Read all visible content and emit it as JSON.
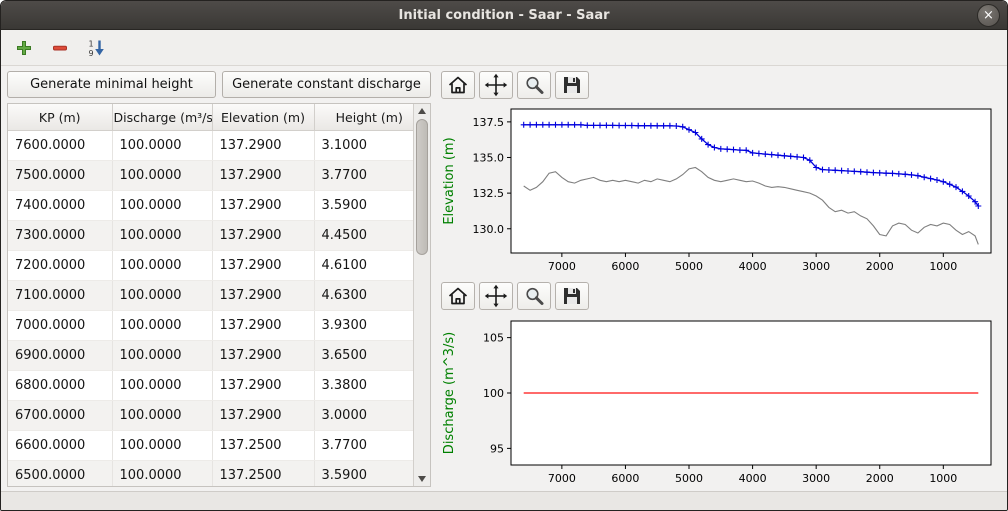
{
  "window": {
    "title": "Initial condition - Saar - Saar",
    "close_glyph": "×"
  },
  "toolbar": {
    "icons": [
      "add",
      "remove",
      "sort-1-9"
    ]
  },
  "actions": {
    "generate_minimal_height": "Generate minimal height",
    "generate_constant_discharge": "Generate constant discharge"
  },
  "table": {
    "columns": [
      "KP (m)",
      "Discharge (m³/s)",
      "Elevation (m)",
      "Height (m)"
    ],
    "rows": [
      [
        "7600.0000",
        "100.0000",
        "137.2900",
        "3.1000"
      ],
      [
        "7500.0000",
        "100.0000",
        "137.2900",
        "3.7700"
      ],
      [
        "7400.0000",
        "100.0000",
        "137.2900",
        "3.5900"
      ],
      [
        "7300.0000",
        "100.0000",
        "137.2900",
        "4.4500"
      ],
      [
        "7200.0000",
        "100.0000",
        "137.2900",
        "4.6100"
      ],
      [
        "7100.0000",
        "100.0000",
        "137.2900",
        "4.6300"
      ],
      [
        "7000.0000",
        "100.0000",
        "137.2900",
        "3.9300"
      ],
      [
        "6900.0000",
        "100.0000",
        "137.2900",
        "3.6500"
      ],
      [
        "6800.0000",
        "100.0000",
        "137.2900",
        "3.3800"
      ],
      [
        "6700.0000",
        "100.0000",
        "137.2900",
        "3.0000"
      ],
      [
        "6600.0000",
        "100.0000",
        "137.2500",
        "3.7700"
      ],
      [
        "6500.0000",
        "100.0000",
        "137.2500",
        "3.5900"
      ]
    ]
  },
  "plot_toolbar": {
    "buttons": [
      "home",
      "pan",
      "zoom",
      "save"
    ]
  },
  "colors": {
    "series_blue": "#0000dd",
    "series_gray": "#7f7f7f",
    "series_red": "#ff1111",
    "axis_label_green": "#008000"
  },
  "chart_data": [
    {
      "type": "line",
      "ylabel": "Elevation (m)",
      "ylabel_color": "#008000",
      "xlim": [
        7800,
        250
      ],
      "ylim": [
        128.3,
        138.4
      ],
      "x_axis_inverted": true,
      "grid": false,
      "xticks": [
        7000,
        6000,
        5000,
        4000,
        3000,
        2000,
        1000
      ],
      "yticks": [
        130.0,
        132.5,
        135.0,
        137.5
      ],
      "ytick_labels": [
        "130.0",
        "132.5",
        "135.0",
        "137.5"
      ],
      "series": [
        {
          "color": "#7f7f7f",
          "width": 1.1,
          "marker": null,
          "data": [
            [
              7600,
              133.0
            ],
            [
              7500,
              132.7
            ],
            [
              7400,
              132.9
            ],
            [
              7300,
              133.3
            ],
            [
              7200,
              133.9
            ],
            [
              7100,
              134.0
            ],
            [
              7000,
              133.6
            ],
            [
              6900,
              133.3
            ],
            [
              6800,
              133.2
            ],
            [
              6700,
              133.4
            ],
            [
              6600,
              133.5
            ],
            [
              6500,
              133.6
            ],
            [
              6400,
              133.4
            ],
            [
              6300,
              133.3
            ],
            [
              6200,
              133.4
            ],
            [
              6100,
              133.3
            ],
            [
              6000,
              133.4
            ],
            [
              5900,
              133.3
            ],
            [
              5800,
              133.2
            ],
            [
              5700,
              133.4
            ],
            [
              5600,
              133.3
            ],
            [
              5500,
              133.5
            ],
            [
              5400,
              133.4
            ],
            [
              5300,
              133.3
            ],
            [
              5200,
              133.5
            ],
            [
              5100,
              133.8
            ],
            [
              5000,
              134.2
            ],
            [
              4900,
              134.3
            ],
            [
              4800,
              134.0
            ],
            [
              4700,
              133.6
            ],
            [
              4600,
              133.4
            ],
            [
              4500,
              133.3
            ],
            [
              4400,
              133.4
            ],
            [
              4300,
              133.5
            ],
            [
              4200,
              133.4
            ],
            [
              4100,
              133.3
            ],
            [
              4000,
              133.35
            ],
            [
              3900,
              133.2
            ],
            [
              3800,
              133.0
            ],
            [
              3700,
              132.9
            ],
            [
              3600,
              132.95
            ],
            [
              3500,
              132.9
            ],
            [
              3400,
              132.8
            ],
            [
              3300,
              132.7
            ],
            [
              3200,
              132.6
            ],
            [
              3100,
              132.5
            ],
            [
              3000,
              132.3
            ],
            [
              2900,
              132.0
            ],
            [
              2800,
              131.5
            ],
            [
              2700,
              131.2
            ],
            [
              2600,
              131.3
            ],
            [
              2500,
              131.1
            ],
            [
              2400,
              131.2
            ],
            [
              2300,
              130.9
            ],
            [
              2200,
              130.7
            ],
            [
              2100,
              130.2
            ],
            [
              2000,
              129.6
            ],
            [
              1900,
              129.5
            ],
            [
              1800,
              130.2
            ],
            [
              1700,
              130.4
            ],
            [
              1600,
              130.3
            ],
            [
              1500,
              129.9
            ],
            [
              1400,
              129.7
            ],
            [
              1300,
              130.1
            ],
            [
              1200,
              130.3
            ],
            [
              1100,
              130.2
            ],
            [
              1000,
              130.4
            ],
            [
              900,
              130.3
            ],
            [
              800,
              129.9
            ],
            [
              700,
              129.6
            ],
            [
              600,
              129.8
            ],
            [
              500,
              129.5
            ],
            [
              450,
              128.9
            ]
          ]
        },
        {
          "color": "#0000dd",
          "width": 1.3,
          "marker": "+",
          "data": [
            [
              7600,
              137.29
            ],
            [
              7500,
              137.29
            ],
            [
              7400,
              137.29
            ],
            [
              7300,
              137.29
            ],
            [
              7200,
              137.29
            ],
            [
              7100,
              137.29
            ],
            [
              7000,
              137.29
            ],
            [
              6900,
              137.29
            ],
            [
              6800,
              137.29
            ],
            [
              6700,
              137.29
            ],
            [
              6600,
              137.25
            ],
            [
              6500,
              137.25
            ],
            [
              6400,
              137.25
            ],
            [
              6300,
              137.25
            ],
            [
              6200,
              137.25
            ],
            [
              6100,
              137.24
            ],
            [
              6000,
              137.24
            ],
            [
              5900,
              137.24
            ],
            [
              5800,
              137.23
            ],
            [
              5700,
              137.23
            ],
            [
              5600,
              137.23
            ],
            [
              5500,
              137.22
            ],
            [
              5400,
              137.22
            ],
            [
              5300,
              137.22
            ],
            [
              5200,
              137.21
            ],
            [
              5100,
              137.15
            ],
            [
              5000,
              136.95
            ],
            [
              4900,
              136.75
            ],
            [
              4800,
              136.3
            ],
            [
              4700,
              135.9
            ],
            [
              4600,
              135.7
            ],
            [
              4500,
              135.6
            ],
            [
              4400,
              135.58
            ],
            [
              4300,
              135.55
            ],
            [
              4200,
              135.52
            ],
            [
              4100,
              135.5
            ],
            [
              4000,
              135.32
            ],
            [
              3900,
              135.28
            ],
            [
              3800,
              135.24
            ],
            [
              3700,
              135.2
            ],
            [
              3600,
              135.16
            ],
            [
              3500,
              135.12
            ],
            [
              3400,
              135.08
            ],
            [
              3300,
              135.04
            ],
            [
              3200,
              135.0
            ],
            [
              3100,
              134.8
            ],
            [
              3000,
              134.3
            ],
            [
              2900,
              134.15
            ],
            [
              2800,
              134.12
            ],
            [
              2700,
              134.1
            ],
            [
              2600,
              134.08
            ],
            [
              2500,
              134.05
            ],
            [
              2400,
              134.02
            ],
            [
              2300,
              134.0
            ],
            [
              2200,
              133.97
            ],
            [
              2100,
              133.94
            ],
            [
              2000,
              133.92
            ],
            [
              1900,
              133.9
            ],
            [
              1800,
              133.88
            ],
            [
              1700,
              133.85
            ],
            [
              1600,
              133.82
            ],
            [
              1500,
              133.78
            ],
            [
              1400,
              133.72
            ],
            [
              1300,
              133.62
            ],
            [
              1200,
              133.52
            ],
            [
              1100,
              133.42
            ],
            [
              1000,
              133.3
            ],
            [
              900,
              133.12
            ],
            [
              800,
              132.92
            ],
            [
              700,
              132.62
            ],
            [
              600,
              132.3
            ],
            [
              500,
              131.9
            ],
            [
              450,
              131.6
            ]
          ]
        }
      ]
    },
    {
      "type": "line",
      "ylabel": "Discharge (m^3/s)",
      "ylabel_color": "#008000",
      "xlim": [
        7800,
        250
      ],
      "ylim": [
        93.5,
        106.5
      ],
      "x_axis_inverted": true,
      "grid": false,
      "xticks": [
        7000,
        6000,
        5000,
        4000,
        3000,
        2000,
        1000
      ],
      "yticks": [
        95,
        100,
        105
      ],
      "ytick_labels": [
        "95",
        "100",
        "105"
      ],
      "series": [
        {
          "color": "#ff1111",
          "width": 1.3,
          "marker": null,
          "data": [
            [
              7600,
              100
            ],
            [
              450,
              100
            ]
          ]
        }
      ]
    }
  ]
}
